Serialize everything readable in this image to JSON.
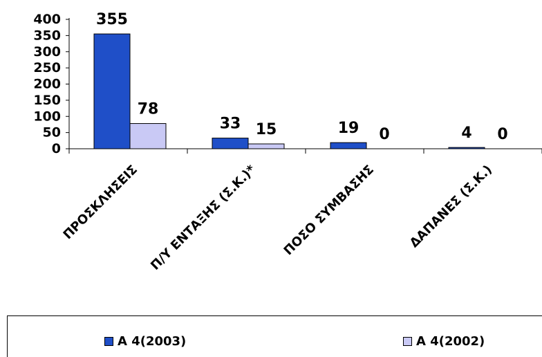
{
  "chart_data": {
    "type": "bar",
    "title": "",
    "categories": [
      "ΠΡΟΣΚΛΗΣΕΙΣ",
      "Π/Υ ΕΝΤΑΞΗΣ (Σ.Κ.)*",
      "ΠΟΣΟ ΣΥΜΒΑΣΗΣ",
      "ΔΑΠΑΝΕΣ (Σ.Κ.)"
    ],
    "series": [
      {
        "name": "A 4(2003)",
        "values": [
          355,
          33,
          19,
          4
        ],
        "color": "#1f4fc8"
      },
      {
        "name": "A 4(2002)",
        "values": [
          78,
          15,
          0,
          0
        ],
        "color": "#c9c9f5"
      }
    ],
    "ylim": [
      0,
      400
    ],
    "yticks": [
      0,
      50,
      100,
      150,
      200,
      250,
      300,
      350,
      400
    ],
    "data_labels": [
      "355",
      "78",
      "33",
      "15",
      "19",
      "0",
      "4",
      "0"
    ],
    "grid": false,
    "legend_position": "bottom"
  }
}
